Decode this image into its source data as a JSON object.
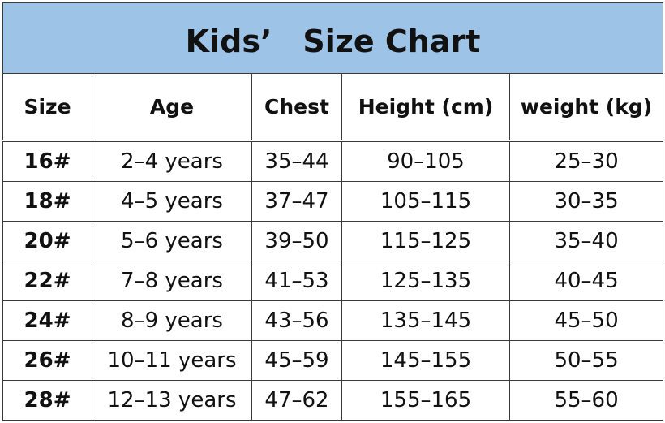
{
  "table": {
    "title": "Kids’　Size Chart",
    "columns": [
      "Size",
      "Age",
      "Chest",
      "Height (cm)",
      "weight (kg)"
    ],
    "rows": [
      [
        "16#",
        "2–4 years",
        "35–44",
        "90–105",
        "25–30"
      ],
      [
        "18#",
        "4–5 years",
        "37–47",
        "105–115",
        "30–35"
      ],
      [
        "20#",
        "5–6 years",
        "39–50",
        "115–125",
        "35–40"
      ],
      [
        "22#",
        "7–8 years",
        "41–53",
        "125–135",
        "40–45"
      ],
      [
        "24#",
        "8–9 years",
        "43–56",
        "135–145",
        "45–50"
      ],
      [
        "26#",
        "10–11 years",
        "45–59",
        "145–155",
        "50–55"
      ],
      [
        "28#",
        "12–13 years",
        "47–62",
        "155–165",
        "55–60"
      ]
    ]
  }
}
